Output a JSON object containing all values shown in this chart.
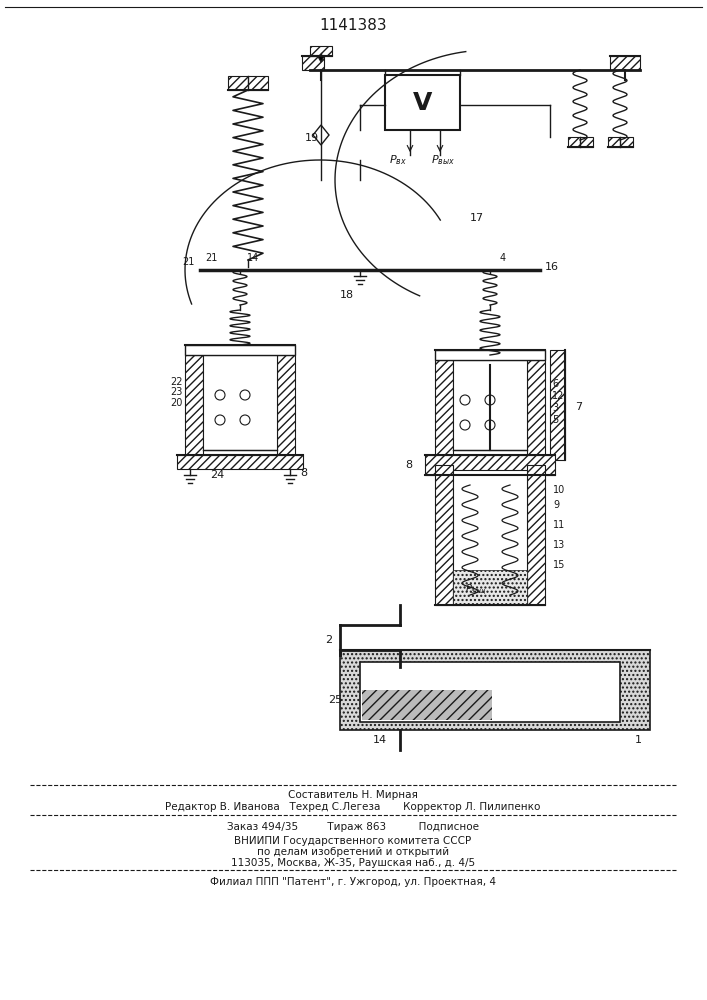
{
  "title": "1141383",
  "bg_color": "#ffffff",
  "lc": "#1a1a1a",
  "footer": {
    "line1": "Составитель Н. Мирная",
    "line2": "Редактор В. Иванова   Техред С.Легеза       Корректор Л. Пилипенко",
    "line3": "Заказ 494/35         Тираж 863          Подписное",
    "line4": "ВНИИПИ Государственного комитета СССР",
    "line5": "по делам изобретений и открытий",
    "line6": "113035, Москва, Ж-35, Раушская наб., д. 4/5",
    "line7": "Филиал ППП \"Патент\", г. Ужгород, ул. Проектная, 4"
  }
}
